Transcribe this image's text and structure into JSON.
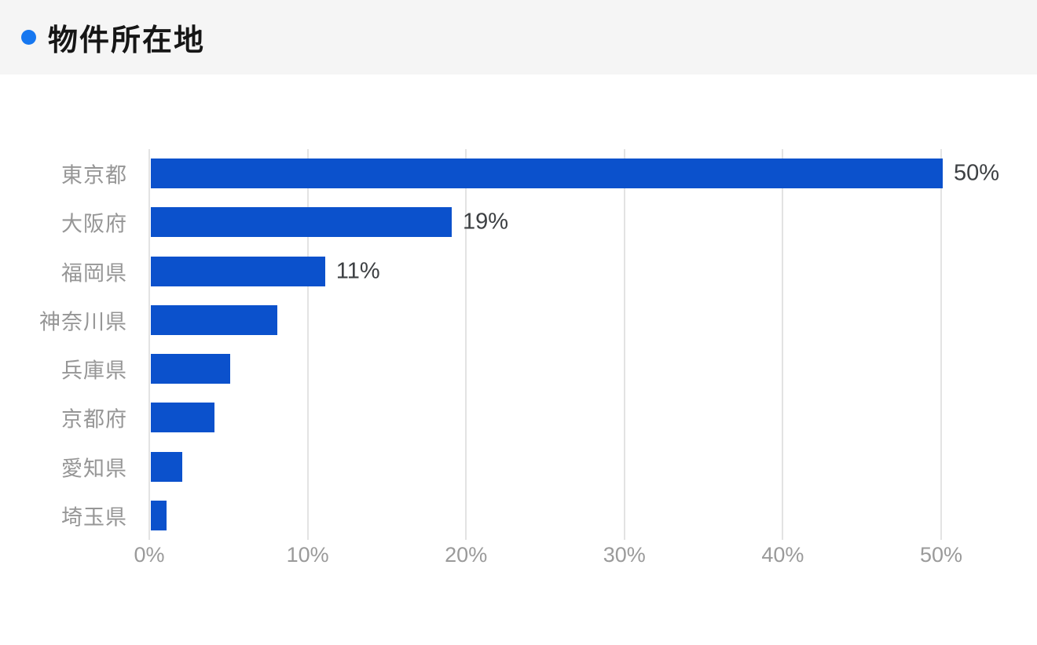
{
  "header": {
    "title": "物件所在地",
    "bullet_color": "#1677f0"
  },
  "chart_data": {
    "type": "bar",
    "orientation": "horizontal",
    "title": "物件所在地",
    "categories": [
      "東京都",
      "大阪府",
      "福岡県",
      "神奈川県",
      "兵庫県",
      "京都府",
      "愛知県",
      "埼玉県"
    ],
    "values": [
      50,
      19,
      11,
      8,
      5,
      4,
      2,
      1
    ],
    "value_labels": [
      "50%",
      "19%",
      "11%",
      "",
      "",
      "",
      "",
      ""
    ],
    "unit": "%",
    "xlabel": "",
    "ylabel": "",
    "xlim": [
      0,
      50
    ],
    "x_ticks": [
      0,
      10,
      20,
      30,
      40,
      50
    ],
    "x_tick_labels": [
      "0%",
      "10%",
      "20%",
      "30%",
      "40%",
      "50%"
    ],
    "grid": "vertical-only",
    "legend": "none",
    "bar_color": "#0b51cc",
    "label_color": "#969696",
    "tick_color": "#9a9a9a",
    "value_label_color": "#3d4043"
  }
}
